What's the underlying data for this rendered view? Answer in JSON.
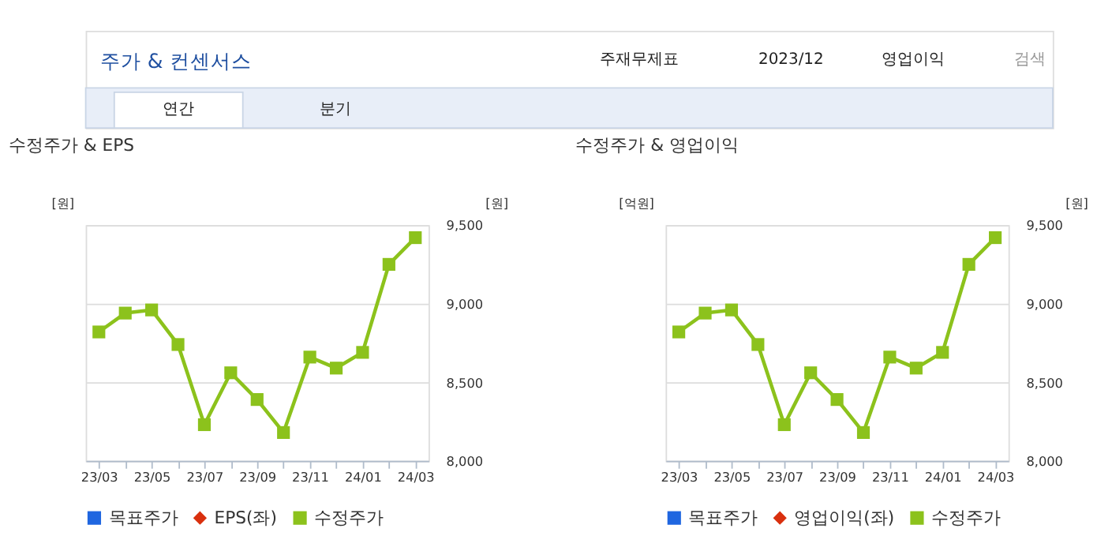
{
  "chart_data": [
    {
      "type": "line",
      "title": "수정주가 & EPS",
      "ylabel": "[원]",
      "y2label": "[원]",
      "annotations": [
        "주가 & 컨센서스",
        "주재무제표",
        "2023/12",
        "영업이익",
        "검색",
        "연간",
        "분기"
      ],
      "categories": [
        "23/03",
        null,
        "23/05",
        null,
        "23/07",
        null,
        "23/09",
        null,
        "23/11",
        null,
        "24/01",
        null,
        "24/03"
      ],
      "series": [
        {
          "name": "목표주가",
          "color": "#1f66e0",
          "marker": "square",
          "values": [
            null,
            null,
            null,
            null,
            null,
            null,
            null,
            null,
            null,
            null,
            null,
            null,
            null
          ]
        },
        {
          "name": "EPS(좌)",
          "color": "#d9300e",
          "marker": "diamond",
          "values": [
            null,
            null,
            null,
            null,
            null,
            null,
            null,
            null,
            null,
            null,
            null,
            null,
            null
          ]
        },
        {
          "name": "수정주가",
          "color": "#8cc21c",
          "marker": "square",
          "axis": "y2",
          "values": [
            8820,
            8940,
            8960,
            8740,
            8230,
            8560,
            8390,
            8180,
            8660,
            8590,
            8690,
            9250,
            9420
          ]
        }
      ],
      "y2lim": [
        8000,
        9500
      ],
      "y2ticks": [
        {
          "value": 8000,
          "label": "8,000"
        },
        {
          "value": 8500,
          "label": "8,500"
        },
        {
          "value": 9000,
          "label": "9,000"
        },
        {
          "value": 9500,
          "label": "9,500"
        }
      ],
      "grid": "y",
      "legend": "bottom",
      "line_style": "solid"
    },
    {
      "type": "line",
      "title": "수정주가 & 영업이익",
      "ylabel": "[억원]",
      "y2label": "[원]",
      "categories": [
        "23/03",
        null,
        "23/05",
        null,
        "23/07",
        null,
        "23/09",
        null,
        "23/11",
        null,
        "24/01",
        null,
        "24/03"
      ],
      "series": [
        {
          "name": "목표주가",
          "color": "#1f66e0",
          "marker": "square",
          "values": [
            null,
            null,
            null,
            null,
            null,
            null,
            null,
            null,
            null,
            null,
            null,
            null,
            null
          ]
        },
        {
          "name": "영업이익(좌)",
          "color": "#d9300e",
          "marker": "diamond",
          "values": [
            null,
            null,
            null,
            null,
            null,
            null,
            null,
            null,
            null,
            null,
            null,
            null,
            null
          ]
        },
        {
          "name": "수정주가",
          "color": "#8cc21c",
          "marker": "square",
          "axis": "y2",
          "values": [
            8820,
            8940,
            8960,
            8740,
            8230,
            8560,
            8390,
            8180,
            8660,
            8590,
            8690,
            9250,
            9420
          ]
        }
      ],
      "y2lim": [
        8000,
        9500
      ],
      "y2ticks": [
        {
          "value": 8000,
          "label": "8,000"
        },
        {
          "value": 8500,
          "label": "8,500"
        },
        {
          "value": 9000,
          "label": "9,000"
        },
        {
          "value": 9500,
          "label": "9,500"
        }
      ],
      "grid": "y",
      "legend": "bottom",
      "line_style": "solid"
    }
  ]
}
